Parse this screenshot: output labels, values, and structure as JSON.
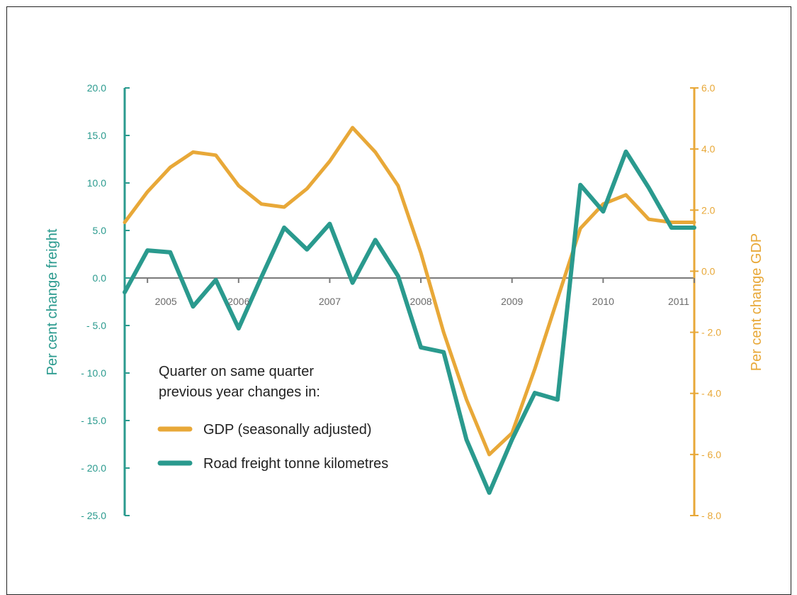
{
  "chart_data": {
    "type": "line",
    "left_axis": {
      "title": "Per cent change freight",
      "ylim": [
        -25,
        20
      ],
      "ticks": [
        "20.0",
        "15.0",
        "10.0",
        "5.0",
        "0.0",
        "- 5.0",
        "- 10.0",
        "- 15.0",
        "- 20.0",
        "- 25.0"
      ],
      "tick_values": [
        20,
        15,
        10,
        5,
        0,
        -5,
        -10,
        -15,
        -20,
        -25
      ],
      "color": "#2a9a8e"
    },
    "right_axis": {
      "title": "Per cent change GDP",
      "ylim": [
        -8,
        6
      ],
      "ticks": [
        "6.0",
        "4.0",
        "2.0",
        "0.0",
        "- 2.0",
        "- 4.0",
        "- 6.0",
        "- 8.0"
      ],
      "tick_values": [
        6,
        4,
        2,
        0,
        -2,
        -4,
        -6,
        -8
      ],
      "color": "#e8a838"
    },
    "x_axis": {
      "labels": [
        "2005",
        "2006",
        "2007",
        "2008",
        "2009",
        "2010",
        "2011"
      ],
      "label_values": [
        2005,
        2006,
        2007,
        2008,
        2009,
        2010,
        2011
      ],
      "xlim": [
        2004.75,
        2011.0
      ]
    },
    "legend": {
      "heading_line1": "Quarter on same quarter",
      "heading_line2": "previous year changes in:",
      "placement": "center-left"
    },
    "series": [
      {
        "name": "GDP (seasonally adjusted)",
        "axis": "right",
        "color": "#e8a838",
        "x": [
          2004.75,
          2005.0,
          2005.25,
          2005.5,
          2005.75,
          2006.0,
          2006.25,
          2006.5,
          2006.75,
          2007.0,
          2007.25,
          2007.5,
          2007.75,
          2008.0,
          2008.25,
          2008.5,
          2008.75,
          2009.0,
          2009.25,
          2009.5,
          2009.75,
          2010.0,
          2010.25,
          2010.5,
          2010.75,
          2011.0
        ],
        "y": [
          1.6,
          2.6,
          3.4,
          3.9,
          3.8,
          2.8,
          2.2,
          2.1,
          2.7,
          3.6,
          4.7,
          3.9,
          2.8,
          0.6,
          -2.0,
          -4.2,
          -6.0,
          -5.3,
          -3.2,
          -0.9,
          1.4,
          2.2,
          2.5,
          1.7,
          1.6,
          1.6
        ]
      },
      {
        "name": "Road freight tonne kilometres",
        "axis": "left",
        "color": "#2a9a8e",
        "x": [
          2004.75,
          2005.0,
          2005.25,
          2005.5,
          2005.75,
          2006.0,
          2006.25,
          2006.5,
          2006.75,
          2007.0,
          2007.25,
          2007.5,
          2007.75,
          2008.0,
          2008.25,
          2008.5,
          2008.75,
          2009.0,
          2009.25,
          2009.5,
          2009.75,
          2010.0,
          2010.25,
          2010.5,
          2010.75,
          2011.0
        ],
        "y": [
          -1.5,
          2.9,
          2.7,
          -3.0,
          -0.2,
          -5.3,
          0.1,
          5.3,
          3.0,
          5.7,
          -0.5,
          4.0,
          0.2,
          -7.3,
          -7.8,
          -17.0,
          -22.6,
          -17.0,
          -12.1,
          -12.8,
          9.8,
          7.0,
          13.3,
          9.5,
          5.3,
          5.3
        ]
      }
    ]
  }
}
